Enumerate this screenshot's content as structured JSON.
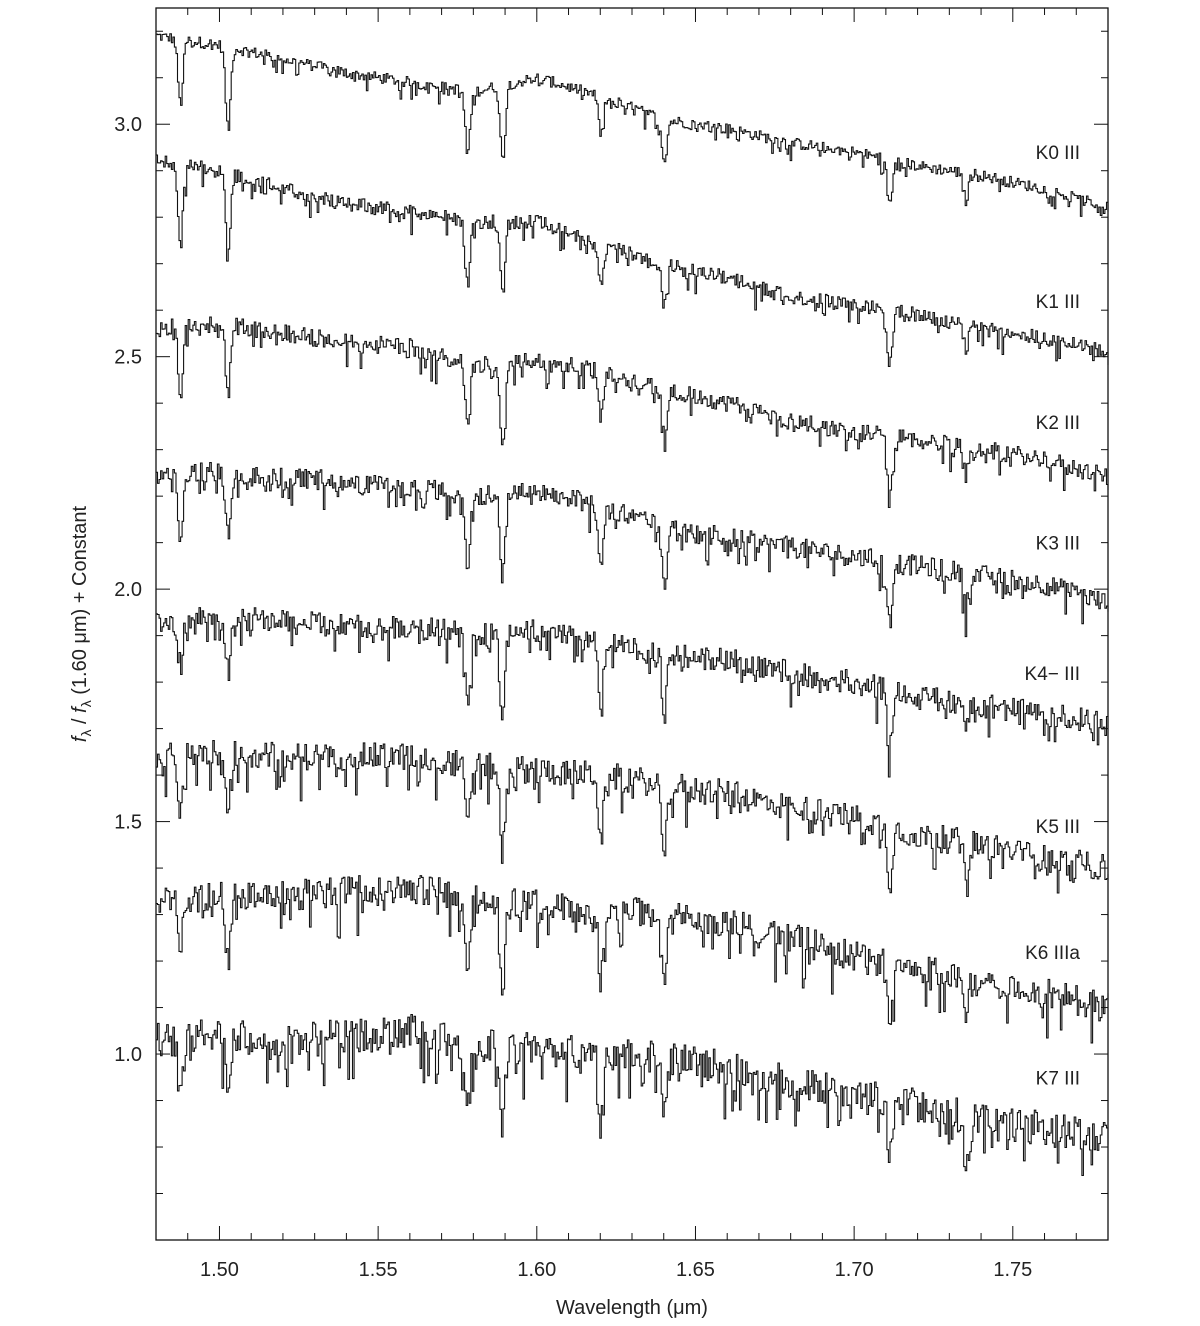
{
  "chart_data": {
    "type": "line",
    "xlabel": "Wavelength (μm)",
    "ylabel_parts": [
      "f",
      "λ",
      " / ",
      "f",
      "λ",
      " (1.60 μm) + Constant"
    ],
    "xlim": [
      1.48,
      1.78
    ],
    "ylim": [
      0.6,
      3.25
    ],
    "x_ticks": [
      1.5,
      1.55,
      1.6,
      1.65,
      1.7,
      1.75
    ],
    "x_tick_labels": [
      "1.50",
      "1.55",
      "1.60",
      "1.65",
      "1.70",
      "1.75"
    ],
    "x_minor_step": 0.01,
    "y_ticks": [
      1.0,
      1.5,
      2.0,
      2.5,
      3.0
    ],
    "y_tick_labels": [
      "1.0",
      "1.5",
      "2.0",
      "2.5",
      "3.0"
    ],
    "y_minor_step": 0.1,
    "grid": false,
    "legend": "none",
    "line_color": "#111111",
    "series": [
      {
        "name": "K0 III",
        "label_y": 2.94,
        "offset": 2.0,
        "x": [
          1.48,
          1.5,
          1.52,
          1.54,
          1.56,
          1.58,
          1.6,
          1.62,
          1.64,
          1.66,
          1.68,
          1.7,
          1.72,
          1.74,
          1.76,
          1.78
        ],
        "y": [
          3.19,
          3.17,
          3.14,
          3.11,
          3.09,
          3.07,
          3.1,
          3.06,
          3.01,
          2.99,
          2.96,
          2.94,
          2.91,
          2.89,
          2.86,
          2.82
        ],
        "lines": [
          [
            1.4875,
            0.14
          ],
          [
            1.5025,
            0.18
          ],
          [
            1.578,
            0.14
          ],
          [
            1.589,
            0.16
          ],
          [
            1.62,
            0.08
          ],
          [
            1.64,
            0.09
          ],
          [
            1.711,
            0.1
          ],
          [
            1.735,
            0.06
          ]
        ]
      },
      {
        "name": "K1 III",
        "label_y": 2.62,
        "offset": 1.7,
        "x": [
          1.48,
          1.5,
          1.52,
          1.54,
          1.56,
          1.58,
          1.6,
          1.62,
          1.64,
          1.66,
          1.68,
          1.7,
          1.72,
          1.74,
          1.76,
          1.78
        ],
        "y": [
          2.92,
          2.9,
          2.86,
          2.83,
          2.81,
          2.79,
          2.79,
          2.74,
          2.7,
          2.67,
          2.63,
          2.61,
          2.59,
          2.56,
          2.54,
          2.51
        ],
        "lines": [
          [
            1.4875,
            0.16
          ],
          [
            1.5025,
            0.18
          ],
          [
            1.578,
            0.14
          ],
          [
            1.589,
            0.16
          ],
          [
            1.62,
            0.08
          ],
          [
            1.64,
            0.09
          ],
          [
            1.711,
            0.12
          ],
          [
            1.735,
            0.05
          ]
        ]
      },
      {
        "name": "K2 III",
        "label_y": 2.36,
        "offset": 1.4,
        "x": [
          1.48,
          1.5,
          1.52,
          1.54,
          1.56,
          1.58,
          1.6,
          1.62,
          1.64,
          1.66,
          1.68,
          1.7,
          1.72,
          1.74,
          1.76,
          1.78
        ],
        "y": [
          2.56,
          2.57,
          2.55,
          2.53,
          2.52,
          2.48,
          2.49,
          2.47,
          2.43,
          2.4,
          2.36,
          2.34,
          2.32,
          2.3,
          2.28,
          2.24
        ],
        "lines": [
          [
            1.4875,
            0.14
          ],
          [
            1.5025,
            0.15
          ],
          [
            1.578,
            0.14
          ],
          [
            1.589,
            0.17
          ],
          [
            1.62,
            0.1
          ],
          [
            1.64,
            0.1
          ],
          [
            1.711,
            0.14
          ],
          [
            1.735,
            0.06
          ]
        ]
      },
      {
        "name": "K3 III",
        "label_y": 2.1,
        "offset": 1.1,
        "x": [
          1.48,
          1.5,
          1.52,
          1.54,
          1.56,
          1.58,
          1.6,
          1.62,
          1.64,
          1.66,
          1.68,
          1.7,
          1.72,
          1.74,
          1.76,
          1.78
        ],
        "y": [
          2.25,
          2.25,
          2.24,
          2.23,
          2.22,
          2.2,
          2.21,
          2.18,
          2.13,
          2.11,
          2.09,
          2.07,
          2.05,
          2.03,
          2.01,
          1.97
        ],
        "lines": [
          [
            1.4875,
            0.14
          ],
          [
            1.5025,
            0.13
          ],
          [
            1.578,
            0.15
          ],
          [
            1.589,
            0.18
          ],
          [
            1.62,
            0.12
          ],
          [
            1.64,
            0.12
          ],
          [
            1.711,
            0.13
          ],
          [
            1.735,
            0.07
          ]
        ]
      },
      {
        "name": "K4− III",
        "label_y": 1.82,
        "offset": 0.8,
        "x": [
          1.48,
          1.5,
          1.52,
          1.54,
          1.56,
          1.58,
          1.6,
          1.62,
          1.64,
          1.66,
          1.68,
          1.7,
          1.72,
          1.74,
          1.76,
          1.78
        ],
        "y": [
          1.93,
          1.94,
          1.93,
          1.92,
          1.92,
          1.9,
          1.91,
          1.89,
          1.86,
          1.85,
          1.82,
          1.8,
          1.77,
          1.75,
          1.73,
          1.71
        ],
        "lines": [
          [
            1.4875,
            0.1
          ],
          [
            1.5025,
            0.12
          ],
          [
            1.578,
            0.14
          ],
          [
            1.589,
            0.18
          ],
          [
            1.62,
            0.13
          ],
          [
            1.64,
            0.13
          ],
          [
            1.711,
            0.13
          ],
          [
            1.735,
            0.07
          ]
        ]
      },
      {
        "name": "K5 III",
        "label_y": 1.49,
        "offset": 0.5,
        "x": [
          1.48,
          1.5,
          1.52,
          1.54,
          1.56,
          1.58,
          1.6,
          1.62,
          1.64,
          1.66,
          1.68,
          1.7,
          1.72,
          1.74,
          1.76,
          1.78
        ],
        "y": [
          1.64,
          1.65,
          1.64,
          1.64,
          1.64,
          1.62,
          1.61,
          1.6,
          1.58,
          1.56,
          1.53,
          1.51,
          1.47,
          1.45,
          1.42,
          1.4
        ],
        "lines": [
          [
            1.4875,
            0.12
          ],
          [
            1.5025,
            0.13
          ],
          [
            1.578,
            0.14
          ],
          [
            1.589,
            0.18
          ],
          [
            1.62,
            0.14
          ],
          [
            1.64,
            0.14
          ],
          [
            1.711,
            0.12
          ],
          [
            1.735,
            0.07
          ]
        ]
      },
      {
        "name": "K6 IIIa",
        "label_y": 1.22,
        "offset": 0.2,
        "x": [
          1.48,
          1.5,
          1.52,
          1.54,
          1.56,
          1.58,
          1.6,
          1.62,
          1.64,
          1.66,
          1.68,
          1.7,
          1.72,
          1.74,
          1.76,
          1.78
        ],
        "y": [
          1.33,
          1.34,
          1.34,
          1.35,
          1.36,
          1.33,
          1.32,
          1.31,
          1.3,
          1.28,
          1.25,
          1.21,
          1.18,
          1.16,
          1.13,
          1.1
        ],
        "lines": [
          [
            1.4875,
            0.1
          ],
          [
            1.5025,
            0.12
          ],
          [
            1.578,
            0.14
          ],
          [
            1.589,
            0.17
          ],
          [
            1.62,
            0.15
          ],
          [
            1.64,
            0.14
          ],
          [
            1.711,
            0.12
          ],
          [
            1.735,
            0.07
          ]
        ]
      },
      {
        "name": "K7 III",
        "label_y": 0.95,
        "offset": -0.1,
        "x": [
          1.48,
          1.5,
          1.52,
          1.54,
          1.56,
          1.58,
          1.6,
          1.62,
          1.64,
          1.66,
          1.68,
          1.7,
          1.72,
          1.74,
          1.76,
          1.78
        ],
        "y": [
          1.03,
          1.04,
          1.03,
          1.04,
          1.05,
          1.02,
          1.01,
          1.0,
          0.99,
          0.97,
          0.94,
          0.91,
          0.89,
          0.86,
          0.84,
          0.82
        ],
        "lines": [
          [
            1.4875,
            0.12
          ],
          [
            1.5025,
            0.12
          ],
          [
            1.578,
            0.14
          ],
          [
            1.589,
            0.17
          ],
          [
            1.62,
            0.15
          ],
          [
            1.64,
            0.13
          ],
          [
            1.711,
            0.12
          ],
          [
            1.735,
            0.07
          ]
        ]
      }
    ]
  }
}
